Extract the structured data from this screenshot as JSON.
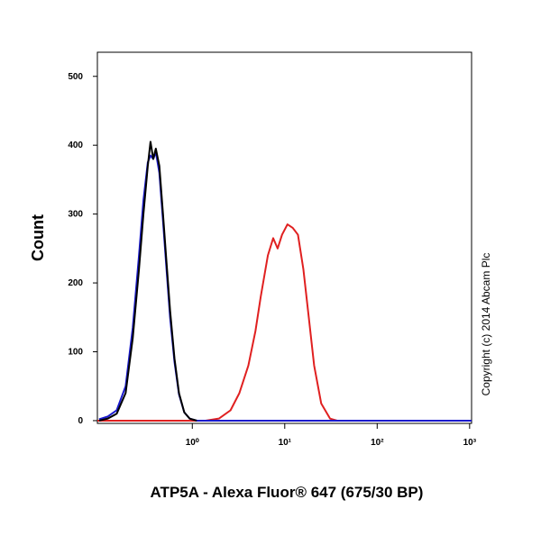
{
  "chart_data": {
    "type": "line",
    "x_label": "ATP5A - Alexa Fluor® 647 (675/30 BP)",
    "y_label": "Count",
    "annotation": "Copyright (c) 2014 Abcam Plc",
    "xscale": "log",
    "xlim": [
      0.094,
      1050
    ],
    "ylim": [
      -4,
      535
    ],
    "xticks": [
      {
        "value": 1,
        "label": "10⁰"
      },
      {
        "value": 10,
        "label": "10¹"
      },
      {
        "value": 100,
        "label": "10²"
      },
      {
        "value": 1000,
        "label": "10³"
      }
    ],
    "yticks": [
      0,
      100,
      200,
      300,
      400,
      500
    ],
    "series": [
      {
        "color": "#e02020",
        "x": [
          0.094,
          1.39,
          1.94,
          2.59,
          3.23,
          4.04,
          4.82,
          5.5,
          6.57,
          7.5,
          8.38,
          9.35,
          10.7,
          12.2,
          13.9,
          15.9,
          18.2,
          20.8,
          24.8,
          30.9,
          36.9,
          1050
        ],
        "values": [
          0,
          0,
          3,
          15,
          40,
          80,
          130,
          180,
          240,
          265,
          250,
          270,
          285,
          280,
          270,
          220,
          150,
          80,
          25,
          3,
          0,
          0
        ]
      },
      {
        "color": "#1a1acc",
        "x": [
          0.098,
          0.122,
          0.152,
          0.19,
          0.227,
          0.265,
          0.296,
          0.33,
          0.353,
          0.378,
          0.403,
          0.44,
          0.482,
          0.526,
          0.575,
          0.642,
          0.718,
          0.819,
          0.936,
          1.12,
          1050
        ],
        "values": [
          2,
          6,
          15,
          50,
          135,
          240,
          320,
          375,
          385,
          380,
          390,
          360,
          290,
          220,
          150,
          85,
          38,
          12,
          3,
          0,
          0
        ]
      },
      {
        "color": "#000000",
        "x": [
          0.098,
          0.122,
          0.152,
          0.19,
          0.227,
          0.265,
          0.296,
          0.33,
          0.353,
          0.378,
          0.403,
          0.44,
          0.482,
          0.526,
          0.575,
          0.642,
          0.718,
          0.819,
          0.936,
          1.12
        ],
        "values": [
          0,
          3,
          10,
          40,
          120,
          220,
          300,
          370,
          405,
          380,
          395,
          370,
          300,
          230,
          160,
          90,
          40,
          12,
          3,
          0
        ]
      }
    ]
  }
}
